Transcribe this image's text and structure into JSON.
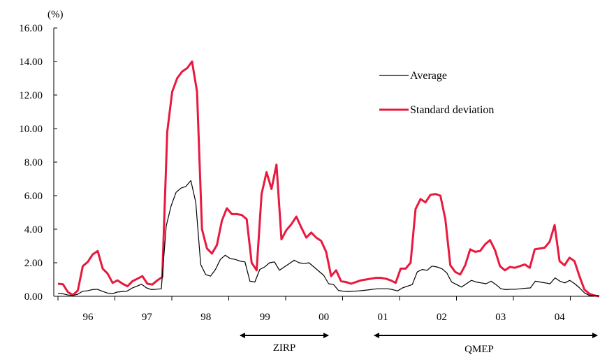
{
  "chart_data": {
    "type": "line",
    "y_unit": "(%)",
    "ylim": [
      0,
      16
    ],
    "y_ticks": [
      "16.00",
      "14.00",
      "12.00",
      "10.00",
      "8.00",
      "6.00",
      "4.00",
      "2.00",
      "0.00"
    ],
    "x_ticks": [
      "96",
      "97",
      "98",
      "99",
      "00",
      "01",
      "02",
      "03",
      "04"
    ],
    "grid": false,
    "legend_position": "top-right",
    "series": [
      {
        "name": "Average",
        "color": "#000000",
        "values": [
          0.18,
          0.15,
          0.08,
          0.05,
          0.12,
          0.3,
          0.33,
          0.4,
          0.42,
          0.3,
          0.2,
          0.15,
          0.25,
          0.28,
          0.3,
          0.48,
          0.6,
          0.72,
          0.5,
          0.4,
          0.42,
          0.45,
          4.2,
          5.4,
          6.2,
          6.45,
          6.55,
          6.9,
          5.6,
          1.9,
          1.3,
          1.2,
          1.6,
          2.2,
          2.45,
          2.25,
          2.2,
          2.1,
          2.05,
          0.9,
          0.85,
          1.6,
          1.75,
          2.0,
          2.05,
          1.55,
          1.75,
          1.95,
          2.15,
          2.0,
          1.95,
          2.0,
          1.75,
          1.5,
          1.25,
          0.75,
          0.7,
          0.35,
          0.3,
          0.28,
          0.3,
          0.32,
          0.35,
          0.38,
          0.42,
          0.45,
          0.45,
          0.45,
          0.4,
          0.32,
          0.5,
          0.6,
          0.7,
          1.45,
          1.6,
          1.55,
          1.8,
          1.75,
          1.65,
          1.4,
          0.85,
          0.7,
          0.55,
          0.75,
          0.95,
          0.85,
          0.8,
          0.75,
          0.9,
          0.7,
          0.45,
          0.4,
          0.42,
          0.42,
          0.45,
          0.48,
          0.5,
          0.9,
          0.85,
          0.8,
          0.75,
          1.1,
          0.9,
          0.8,
          0.95,
          0.75,
          0.5,
          0.2,
          0.05,
          0.03,
          0.02
        ]
      },
      {
        "name": "Standard deviation",
        "color": "#e8193f",
        "values": [
          0.75,
          0.72,
          0.25,
          0.08,
          0.35,
          1.8,
          2.05,
          2.5,
          2.7,
          1.65,
          1.35,
          0.8,
          0.95,
          0.75,
          0.6,
          0.9,
          1.05,
          1.2,
          0.75,
          0.7,
          0.95,
          1.15,
          9.8,
          12.2,
          13.0,
          13.4,
          13.6,
          14.0,
          12.2,
          4.0,
          2.85,
          2.55,
          3.05,
          4.5,
          5.25,
          4.9,
          4.9,
          4.85,
          4.6,
          2.0,
          1.55,
          6.1,
          7.4,
          6.4,
          7.85,
          3.4,
          3.95,
          4.3,
          4.75,
          4.1,
          3.5,
          3.8,
          3.5,
          3.3,
          2.65,
          1.2,
          1.55,
          0.9,
          0.85,
          0.75,
          0.85,
          0.95,
          1.0,
          1.05,
          1.1,
          1.1,
          1.05,
          0.95,
          0.8,
          1.65,
          1.65,
          2.0,
          5.2,
          5.8,
          5.6,
          6.05,
          6.1,
          6.0,
          4.6,
          1.85,
          1.45,
          1.3,
          1.85,
          2.8,
          2.65,
          2.7,
          3.1,
          3.35,
          2.75,
          1.8,
          1.55,
          1.75,
          1.7,
          1.8,
          1.9,
          1.7,
          2.8,
          2.85,
          2.9,
          3.25,
          4.25,
          2.1,
          1.85,
          2.3,
          2.1,
          1.2,
          0.4,
          0.15,
          0.05,
          0.0
        ]
      }
    ],
    "annotations": [
      {
        "label": "ZIRP",
        "from": "99",
        "to": "00"
      },
      {
        "label": "QMEP",
        "from": "01",
        "to": "04"
      }
    ]
  }
}
